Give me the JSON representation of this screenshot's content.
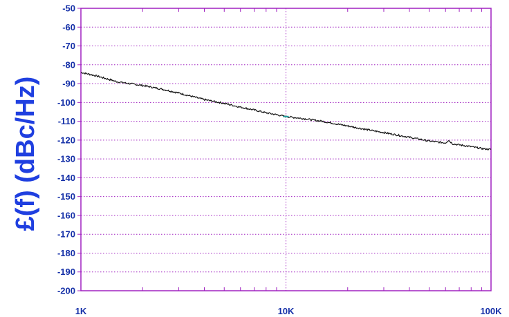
{
  "chart_data": {
    "type": "line",
    "title": "",
    "xlabel": "",
    "ylabel": "£(f) (dBc/Hz)",
    "x_scale": "log",
    "xlim": [
      1000,
      100000
    ],
    "ylim": [
      -200,
      -50
    ],
    "x_ticks": [
      {
        "value": 1000,
        "label": "1K"
      },
      {
        "value": 10000,
        "label": "10K"
      },
      {
        "value": 100000,
        "label": "100K"
      }
    ],
    "y_ticks": [
      {
        "value": -50,
        "label": "-50"
      },
      {
        "value": -60,
        "label": "-60"
      },
      {
        "value": -70,
        "label": "-70"
      },
      {
        "value": -80,
        "label": "-80"
      },
      {
        "value": -90,
        "label": "-90"
      },
      {
        "value": -100,
        "label": "-100"
      },
      {
        "value": -110,
        "label": "-110"
      },
      {
        "value": -120,
        "label": "-120"
      },
      {
        "value": -130,
        "label": "-130"
      },
      {
        "value": -140,
        "label": "-140"
      },
      {
        "value": -150,
        "label": "-150"
      },
      {
        "value": -160,
        "label": "-160"
      },
      {
        "value": -170,
        "label": "-170"
      },
      {
        "value": -180,
        "label": "-180"
      },
      {
        "value": -190,
        "label": "-190"
      },
      {
        "value": -200,
        "label": "-200"
      }
    ],
    "grid": true,
    "grid_color": "#a020c0",
    "axis_color": "#a020c0",
    "tick_label_color": "#1530a8",
    "ylabel_color": "#1f3fe0",
    "series": [
      {
        "color": "#111111",
        "x": [
          1000,
          1200,
          1500,
          2000,
          2500,
          3000,
          4000,
          5000,
          6000,
          7000,
          8000,
          9000,
          10000,
          12000,
          15000,
          20000,
          25000,
          30000,
          40000,
          50000,
          60000,
          62000,
          65000,
          70000,
          80000,
          90000,
          100000
        ],
        "y": [
          -84,
          -86,
          -89,
          -91,
          -93,
          -95,
          -98.5,
          -100.5,
          -102.5,
          -104,
          -105.5,
          -106.5,
          -107.5,
          -108.5,
          -110,
          -112.5,
          -114.5,
          -116,
          -118.5,
          -120.5,
          -121.5,
          -120,
          -122,
          -122.5,
          -123.5,
          -124.5,
          -125
        ]
      }
    ],
    "marker": {
      "x": 10000,
      "y": -107.5,
      "color": "#20a0a0"
    }
  }
}
